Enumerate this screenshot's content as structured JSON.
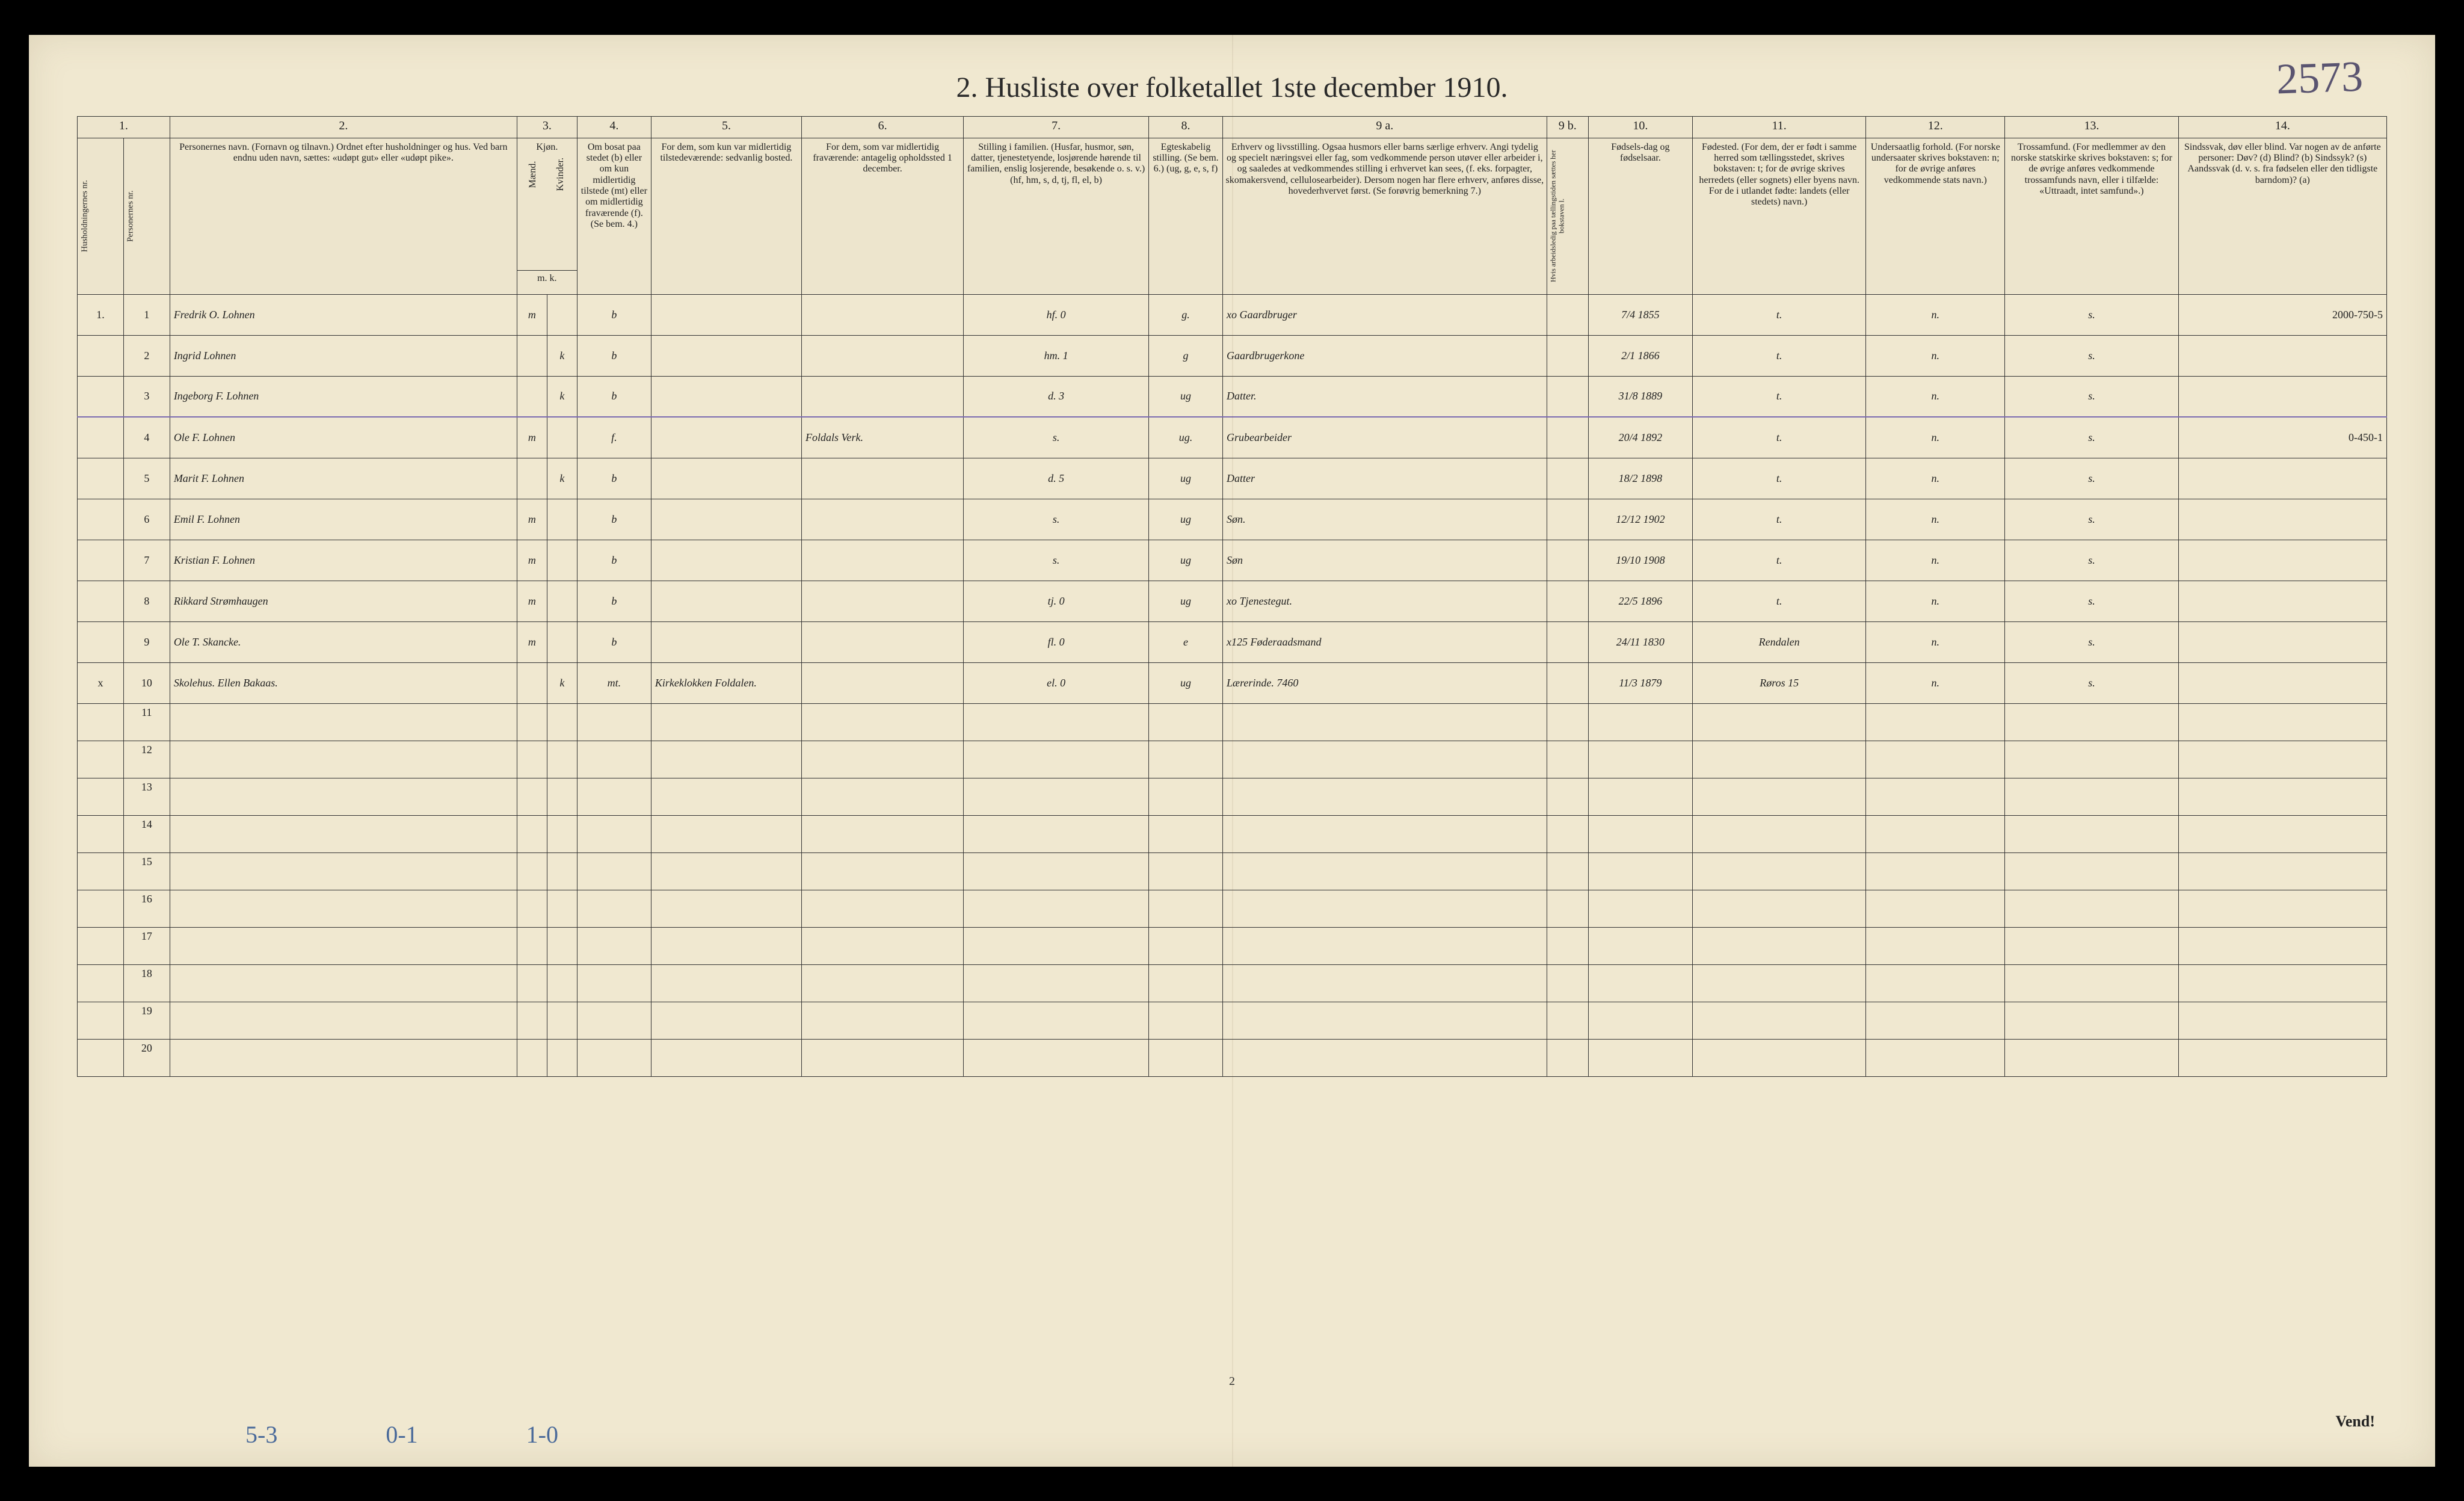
{
  "title": "2.  Husliste over folketallet 1ste december 1910.",
  "corner_note": "2573",
  "page_number": "2",
  "vend_label": "Vend!",
  "bottom_notes": [
    "5-3",
    "0-1",
    "1-0"
  ],
  "column_numbers": [
    "1.",
    "",
    "2.",
    "3.",
    "4.",
    "5.",
    "6.",
    "7.",
    "8.",
    "9 a.",
    "9 b.",
    "10.",
    "11.",
    "12.",
    "13.",
    "14."
  ],
  "headers": {
    "c1": "Husholdningernes nr.",
    "c1b": "Personernes nr.",
    "c2": "Personernes navn.\n(Fornavn og tilnavn.)\nOrdnet efter husholdninger og hus.\nVed barn endnu uden navn, sættes: «udøpt gut» eller «udøpt pike».",
    "c3": "Kjøn.",
    "c3a": "Mænd.",
    "c3b": "Kvinder.",
    "c3s": "m.  k.",
    "c4": "Om bosat paa stedet (b) eller om kun midlertidig tilstede (mt) eller om midlertidig fraværende (f). (Se bem. 4.)",
    "c5": "For dem, som kun var midlertidig tilstedeværende:\nsedvanlig bosted.",
    "c6": "For dem, som var midlertidig fraværende:\nantagelig opholdssted 1 december.",
    "c7": "Stilling i familien.\n(Husfar, husmor, søn, datter, tjenestetyende, losjørende hørende til familien, enslig losjerende, besøkende o. s. v.)\n(hf, hm, s, d, tj, fl, el, b)",
    "c8": "Egteskabelig stilling.\n(Se bem. 6.)\n(ug, g, e, s, f)",
    "c9a": "Erhverv og livsstilling.\nOgsaa husmors eller barns særlige erhverv. Angi tydelig og specielt næringsvei eller fag, som vedkommende person utøver eller arbeider i, og saaledes at vedkommendes stilling i erhvervet kan sees, (f. eks. forpagter, skomakersvend, cellulosearbeider). Dersom nogen har flere erhverv, anføres disse, hovederhvervet først. (Se forøvrig bemerkning 7.)",
    "c9b": "Hvis arbeidsledig paa tællingstiden sættes her bokstaven l.",
    "c10": "Fødsels-dag og fødselsaar.",
    "c11": "Fødested.\n(For dem, der er født i samme herred som tællingsstedet, skrives bokstaven: t; for de øvrige skrives herredets (eller sognets) eller byens navn. For de i utlandet fødte: landets (eller stedets) navn.)",
    "c12": "Undersaatlig forhold.\n(For norske undersaater skrives bokstaven: n; for de øvrige anføres vedkommende stats navn.)",
    "c13": "Trossamfund.\n(For medlemmer av den norske statskirke skrives bokstaven: s; for de øvrige anføres vedkommende trossamfunds navn, eller i tilfælde: «Uttraadt, intet samfund».)",
    "c14": "Sindssvak, døv eller blind.\nVar nogen av de anførte personer:\nDøv? (d)\nBlind? (b)\nSindssyk? (s)\nAandssvak (d. v. s. fra fødselen eller den tidligste barndom)? (a)"
  },
  "rows": [
    {
      "hh": "1.",
      "n": "1",
      "name": "Fredrik O. Lohnen",
      "sex": "m",
      "res": "b",
      "c5": "",
      "c6": "",
      "fam": "hf.   0",
      "mar": "g.",
      "occ": "xo Gaardbruger",
      "c9b": "",
      "dob": "7/4 1855",
      "birthpl": "t.",
      "nat": "n.",
      "rel": "s.",
      "note": "2000-750-5"
    },
    {
      "hh": "",
      "n": "2",
      "name": "Ingrid Lohnen",
      "sex": "k",
      "res": "b",
      "c5": "",
      "c6": "",
      "fam": "hm.   1",
      "mar": "g",
      "occ": "Gaardbrugerkone",
      "c9b": "",
      "dob": "2/1 1866",
      "birthpl": "t.",
      "nat": "n.",
      "rel": "s.",
      "note": ""
    },
    {
      "hh": "",
      "n": "3",
      "name": "Ingeborg F. Lohnen",
      "sex": "k",
      "res": "b",
      "c5": "",
      "c6": "",
      "fam": "d.    3",
      "mar": "ug",
      "occ": "Datter.",
      "c9b": "",
      "dob": "31/8 1889",
      "birthpl": "t.",
      "nat": "n.",
      "rel": "s.",
      "note": ""
    },
    {
      "hh": "",
      "n": "4",
      "name": "Ole F. Lohnen",
      "sex": "m",
      "res": "f.",
      "c5": "",
      "c6": "Foldals Verk.",
      "fam": "s.",
      "mar": "ug.",
      "occ": "Grubearbeider",
      "c9b": "",
      "dob": "20/4 1892",
      "birthpl": "t.",
      "nat": "n.",
      "rel": "s.",
      "note": "0-450-1"
    },
    {
      "hh": "",
      "n": "5",
      "name": "Marit F. Lohnen",
      "sex": "k",
      "res": "b",
      "c5": "",
      "c6": "",
      "fam": "d.    5",
      "mar": "ug",
      "occ": "Datter",
      "c9b": "",
      "dob": "18/2 1898",
      "birthpl": "t.",
      "nat": "n.",
      "rel": "s.",
      "note": ""
    },
    {
      "hh": "",
      "n": "6",
      "name": "Emil F. Lohnen",
      "sex": "m",
      "res": "b",
      "c5": "",
      "c6": "",
      "fam": "s.",
      "mar": "ug",
      "occ": "Søn.",
      "c9b": "",
      "dob": "12/12 1902",
      "birthpl": "t.",
      "nat": "n.",
      "rel": "s.",
      "note": ""
    },
    {
      "hh": "",
      "n": "7",
      "name": "Kristian F. Lohnen",
      "sex": "m",
      "res": "b",
      "c5": "",
      "c6": "",
      "fam": "s.",
      "mar": "ug",
      "occ": "Søn",
      "c9b": "",
      "dob": "19/10 1908",
      "birthpl": "t.",
      "nat": "n.",
      "rel": "s.",
      "note": ""
    },
    {
      "hh": "",
      "n": "8",
      "name": "Rikkard Strømhaugen",
      "sex": "m",
      "res": "b",
      "c5": "",
      "c6": "",
      "fam": "tj.    0",
      "mar": "ug",
      "occ": "xo Tjenestegut.",
      "c9b": "",
      "dob": "22/5 1896",
      "birthpl": "t.",
      "nat": "n.",
      "rel": "s.",
      "note": ""
    },
    {
      "hh": "",
      "n": "9",
      "name": "Ole T. Skancke.",
      "sex": "m",
      "res": "b",
      "c5": "",
      "c6": "",
      "fam": "fl.    0",
      "mar": "e",
      "occ": "x125 Føderaadsmand",
      "c9b": "",
      "dob": "24/11 1830",
      "birthpl": "Rendalen",
      "nat": "n.",
      "rel": "s.",
      "note": ""
    },
    {
      "hh": "x",
      "n": "10",
      "name": "Skolehus.  Ellen Bakaas.",
      "sex": "k.",
      "res": "mt.",
      "c5": "Kirkeklokken Foldalen.",
      "c6": "",
      "fam": "el.    0",
      "mar": "ug",
      "occ": "Lærerinde. 7460",
      "c9b": "",
      "dob": "11/3 1879",
      "birthpl": "Røros 15",
      "nat": "n.",
      "rel": "s.",
      "note": ""
    }
  ],
  "empty_row_numbers": [
    "11",
    "12",
    "13",
    "14",
    "15",
    "16",
    "17",
    "18",
    "19",
    "20"
  ],
  "col_widths": {
    "c1": "2%",
    "c1b": "2%",
    "c2": "15%",
    "c3a": "1.3%",
    "c3b": "1.3%",
    "c4": "3.2%",
    "c5": "6.5%",
    "c6": "7%",
    "c7": "8%",
    "c8": "3.2%",
    "c9a": "14%",
    "c9b": "1.8%",
    "c10": "4.5%",
    "c11": "7.5%",
    "c12": "6%",
    "c13": "7.5%",
    "c14": "9%"
  }
}
